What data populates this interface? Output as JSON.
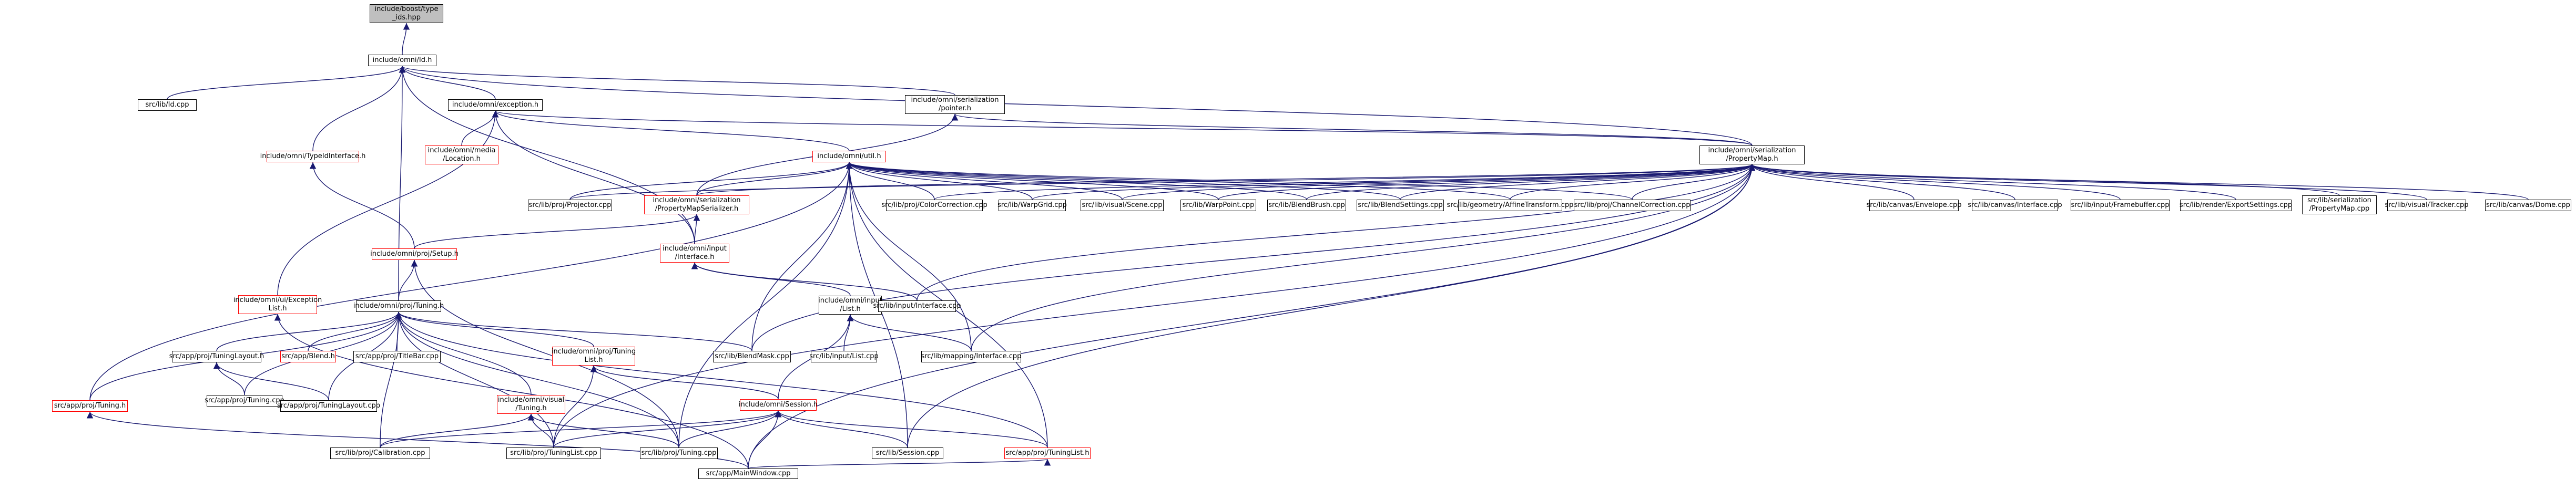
{
  "graph": {
    "edge_color": "#191970",
    "node_border_default": "#000000",
    "node_border_red": "#ff0000",
    "root_fill": "#bfbfbf",
    "nodes": [
      {
        "id": "n1",
        "label": "include/boost/type\n_ids.hpp",
        "border": "black",
        "root": true
      },
      {
        "id": "n2",
        "label": "include/omni/Id.h",
        "border": "black"
      },
      {
        "id": "n3",
        "label": "src/lib/Id.cpp",
        "border": "black"
      },
      {
        "id": "n4",
        "label": "include/omni/exception.h",
        "border": "black"
      },
      {
        "id": "n5",
        "label": "include/omni/serialization\n/pointer.h",
        "border": "black"
      },
      {
        "id": "n6",
        "label": "include/omni/serialization\n/PropertyMap.h",
        "border": "black"
      },
      {
        "id": "n7",
        "label": "include/omni/TypeIdInterface.h",
        "border": "red"
      },
      {
        "id": "n8",
        "label": "include/omni/media\n/Location.h",
        "border": "red"
      },
      {
        "id": "n9",
        "label": "include/omni/util.h",
        "border": "red"
      },
      {
        "id": "n10",
        "label": "src/lib/proj/Projector.cpp",
        "border": "black"
      },
      {
        "id": "n11",
        "label": "include/omni/serialization\n/PropertyMapSerializer.h",
        "border": "red"
      },
      {
        "id": "n12",
        "label": "include/omni/input\n/Interface.h",
        "border": "red"
      },
      {
        "id": "n13",
        "label": "include/omni/ui/Exception\nList.h",
        "border": "red"
      },
      {
        "id": "n14",
        "label": "include/omni/proj/Setup.h",
        "border": "red"
      },
      {
        "id": "n15",
        "label": "src/lib/proj/ColorCorrection.cpp",
        "border": "black"
      },
      {
        "id": "n16",
        "label": "src/lib/WarpGrid.cpp",
        "border": "black"
      },
      {
        "id": "n17",
        "label": "src/lib/visual/Scene.cpp",
        "border": "black"
      },
      {
        "id": "n18",
        "label": "src/lib/WarpPoint.cpp",
        "border": "black"
      },
      {
        "id": "n19",
        "label": "src/lib/BlendBrush.cpp",
        "border": "black"
      },
      {
        "id": "n20",
        "label": "src/lib/BlendSettings.cpp",
        "border": "black"
      },
      {
        "id": "n21",
        "label": "src/lib/geometry/AffineTransform.cpp",
        "border": "black"
      },
      {
        "id": "n22",
        "label": "src/lib/proj/ChannelCorrection.cpp",
        "border": "black"
      },
      {
        "id": "n23",
        "label": "src/lib/canvas/Envelope.cpp",
        "border": "black"
      },
      {
        "id": "n24",
        "label": "src/lib/canvas/Interface.cpp",
        "border": "black"
      },
      {
        "id": "n25",
        "label": "src/lib/input/Framebuffer.cpp",
        "border": "black"
      },
      {
        "id": "n26",
        "label": "src/lib/render/ExportSettings.cpp",
        "border": "black"
      },
      {
        "id": "n27",
        "label": "src/lib/serialization\n/PropertyMap.cpp",
        "border": "black"
      },
      {
        "id": "n28",
        "label": "src/lib/visual/Tracker.cpp",
        "border": "black"
      },
      {
        "id": "n29",
        "label": "src/lib/canvas/Dome.cpp",
        "border": "black"
      },
      {
        "id": "n30",
        "label": "include/omni/input\n/List.h",
        "border": "black"
      },
      {
        "id": "n31",
        "label": "src/lib/input/Interface.cpp",
        "border": "black"
      },
      {
        "id": "n32",
        "label": "include/omni/proj/Tuning.h",
        "border": "black"
      },
      {
        "id": "n33",
        "label": "src/app/proj/TuningLayout.h",
        "border": "black"
      },
      {
        "id": "n34",
        "label": "src/app/Blend.h",
        "border": "red"
      },
      {
        "id": "n35",
        "label": "src/app/proj/TitleBar.cpp",
        "border": "black"
      },
      {
        "id": "n36",
        "label": "include/omni/proj/Tuning\nList.h",
        "border": "red"
      },
      {
        "id": "n37",
        "label": "src/lib/BlendMask.cpp",
        "border": "black"
      },
      {
        "id": "n38",
        "label": "src/lib/input/List.cpp",
        "border": "black"
      },
      {
        "id": "n39",
        "label": "src/lib/mapping/Interface.cpp",
        "border": "black"
      },
      {
        "id": "n40",
        "label": "src/app/proj/Tuning.cpp",
        "border": "black"
      },
      {
        "id": "n41",
        "label": "src/app/proj/TuningLayout.cpp",
        "border": "black"
      },
      {
        "id": "n42",
        "label": "src/app/proj/Tuning.h",
        "border": "red"
      },
      {
        "id": "n43",
        "label": "include/omni/visual\n/Tuning.h",
        "border": "red"
      },
      {
        "id": "n44",
        "label": "include/omni/Session.h",
        "border": "red"
      },
      {
        "id": "n45",
        "label": "src/lib/proj/Calibration.cpp",
        "border": "black"
      },
      {
        "id": "n46",
        "label": "src/lib/proj/TuningList.cpp",
        "border": "black"
      },
      {
        "id": "n47",
        "label": "src/lib/proj/Tuning.cpp",
        "border": "black"
      },
      {
        "id": "n48",
        "label": "src/lib/Session.cpp",
        "border": "black"
      },
      {
        "id": "n49",
        "label": "src/app/proj/TuningList.h",
        "border": "red"
      },
      {
        "id": "n50",
        "label": "src/app/MainWindow.cpp",
        "border": "black"
      }
    ]
  }
}
